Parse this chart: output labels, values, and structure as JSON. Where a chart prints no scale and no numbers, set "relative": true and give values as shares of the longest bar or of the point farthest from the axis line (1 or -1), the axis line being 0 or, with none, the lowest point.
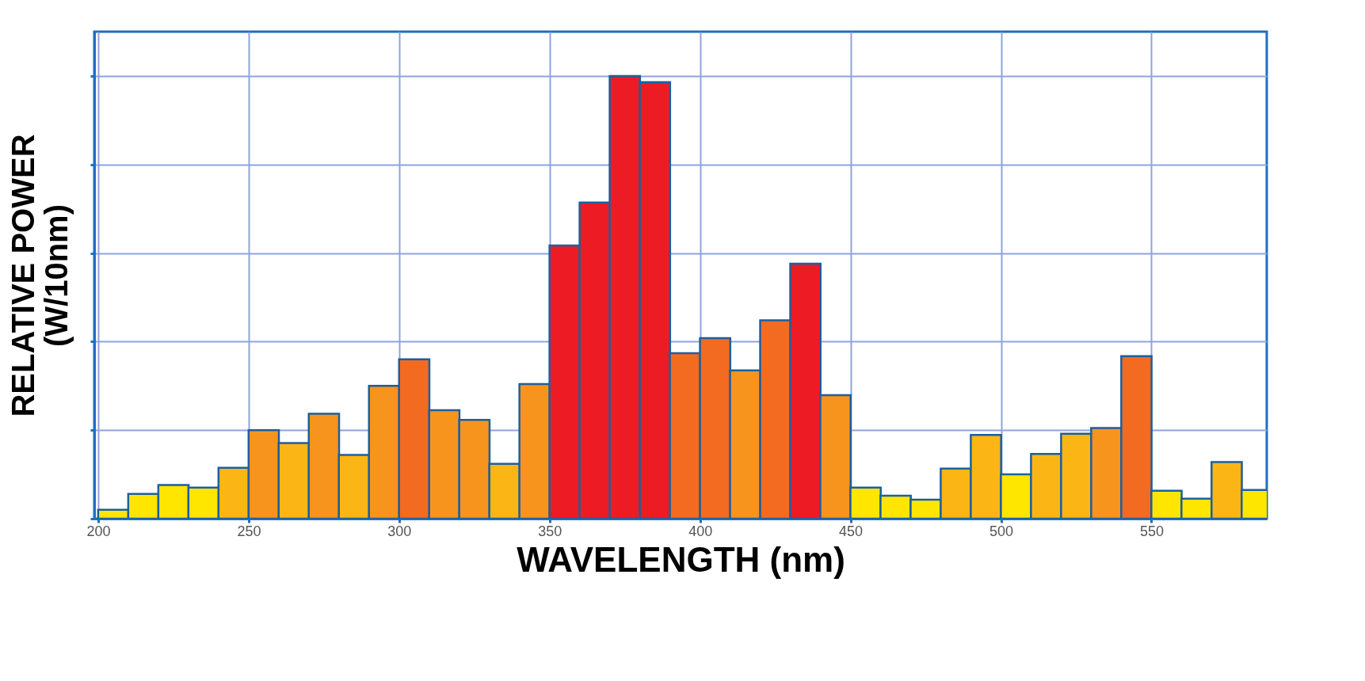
{
  "chart_data": {
    "type": "bar",
    "xlabel": "WAVELENGTH (nm)",
    "ylabel": "RELATIVE POWER\n(W/10nm)",
    "relative": true,
    "x": [
      205,
      215,
      225,
      235,
      245,
      255,
      265,
      275,
      285,
      295,
      305,
      315,
      325,
      335,
      345,
      355,
      365,
      375,
      385,
      395,
      405,
      415,
      425,
      435,
      445,
      455,
      465,
      475,
      485,
      495,
      505,
      515,
      525,
      535,
      545,
      555,
      565,
      575,
      585
    ],
    "values": [
      0.02,
      0.056,
      0.076,
      0.07,
      0.115,
      0.2,
      0.171,
      0.237,
      0.144,
      0.3,
      0.36,
      0.245,
      0.223,
      0.124,
      0.304,
      0.617,
      0.714,
      1,
      0.986,
      0.374,
      0.408,
      0.335,
      0.448,
      0.576,
      0.279,
      0.07,
      0.052,
      0.043,
      0.113,
      0.189,
      0.1,
      0.146,
      0.192,
      0.205,
      0.367,
      0.063,
      0.045,
      0.128,
      0.065
    ],
    "colors": [
      "#ffe600",
      "#ffe600",
      "#ffe600",
      "#ffe600",
      "#fbb615",
      "#f7941d",
      "#fbb615",
      "#f7941d",
      "#fbb615",
      "#f7941d",
      "#f26b21",
      "#f7941d",
      "#f7941d",
      "#fbb615",
      "#f7941d",
      "#ed1c24",
      "#ed1c24",
      "#ed1c24",
      "#ed1c24",
      "#f26b21",
      "#f26b21",
      "#f7941d",
      "#f26b21",
      "#ed1c24",
      "#f7941d",
      "#ffe600",
      "#ffe600",
      "#ffe600",
      "#fbb615",
      "#fbb615",
      "#ffe600",
      "#fbb615",
      "#fbb615",
      "#f7941d",
      "#f26b21",
      "#ffe600",
      "#ffe600",
      "#fbb615",
      "#ffe600"
    ],
    "xlim": [
      200,
      587
    ],
    "xticks": [
      200,
      250,
      300,
      350,
      400,
      450,
      500,
      550
    ],
    "grid": true
  }
}
